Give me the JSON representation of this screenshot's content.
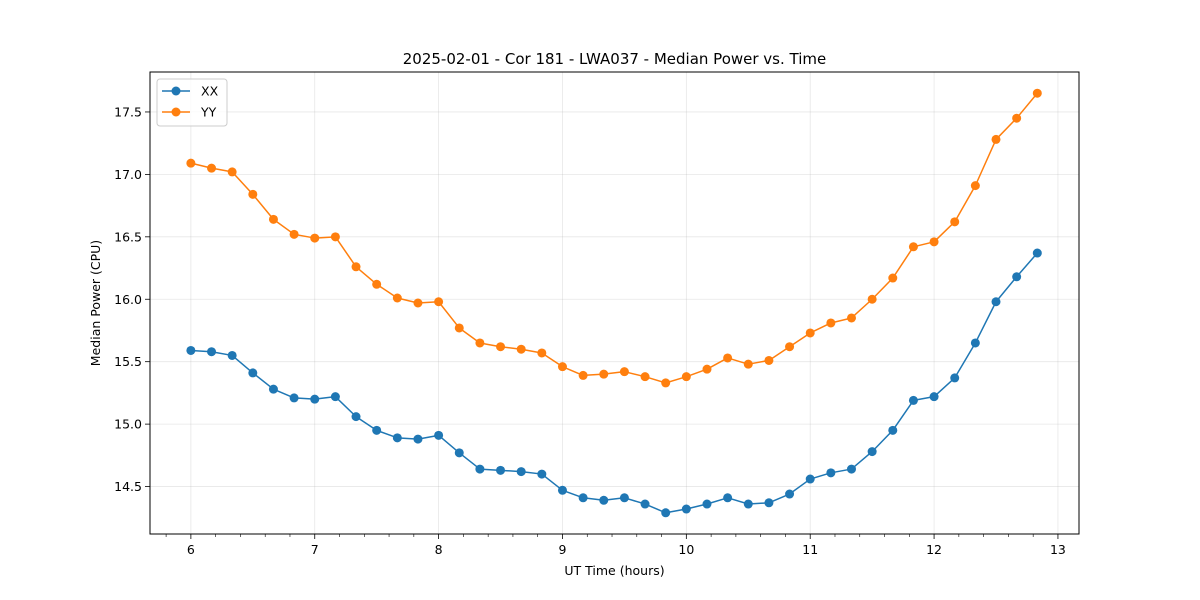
{
  "chart_data": {
    "type": "line",
    "title": "2025-02-01 - Cor 181 - LWA037 - Median Power vs. Time",
    "xlabel": "UT Time (hours)",
    "ylabel": "Median Power (CPU)",
    "xlim": [
      5.67,
      13.17
    ],
    "ylim": [
      14.12,
      17.82
    ],
    "xticks": [
      6,
      7,
      8,
      9,
      10,
      11,
      12,
      13
    ],
    "xtick_labels": [
      "6",
      "7",
      "8",
      "9",
      "10",
      "11",
      "12",
      "13"
    ],
    "yticks": [
      14.5,
      15.0,
      15.5,
      16.0,
      16.5,
      17.0,
      17.5
    ],
    "ytick_labels": [
      "14.5",
      "15.0",
      "15.5",
      "16.0",
      "16.5",
      "17.0",
      "17.5"
    ],
    "grid": true,
    "legend_position": "top-left",
    "x": [
      6.0,
      6.1667,
      6.3333,
      6.5,
      6.6667,
      6.8333,
      7.0,
      7.1667,
      7.3333,
      7.5,
      7.6667,
      7.8333,
      8.0,
      8.1667,
      8.3333,
      8.5,
      8.6667,
      8.8333,
      9.0,
      9.1667,
      9.3333,
      9.5,
      9.6667,
      9.8333,
      10.0,
      10.1667,
      10.3333,
      10.5,
      10.6667,
      10.8333,
      11.0,
      11.1667,
      11.3333,
      11.5,
      11.6667,
      11.8333,
      12.0,
      12.1667,
      12.3333,
      12.5,
      12.6667,
      12.8333
    ],
    "series": [
      {
        "name": "XX",
        "color": "#1f77b4",
        "values": [
          15.59,
          15.58,
          15.55,
          15.41,
          15.28,
          15.21,
          15.2,
          15.22,
          15.06,
          14.95,
          14.89,
          14.88,
          14.91,
          14.77,
          14.64,
          14.63,
          14.62,
          14.6,
          14.47,
          14.41,
          14.39,
          14.41,
          14.36,
          14.29,
          14.32,
          14.36,
          14.41,
          14.36,
          14.37,
          14.44,
          14.56,
          14.61,
          14.64,
          14.78,
          14.95,
          15.19,
          15.22,
          15.37,
          15.65,
          15.98,
          16.18,
          16.37
        ]
      },
      {
        "name": "YY",
        "color": "#ff7f0e",
        "values": [
          17.09,
          17.05,
          17.02,
          16.84,
          16.64,
          16.52,
          16.49,
          16.5,
          16.26,
          16.12,
          16.01,
          15.97,
          15.98,
          15.77,
          15.65,
          15.62,
          15.6,
          15.57,
          15.46,
          15.39,
          15.4,
          15.42,
          15.38,
          15.33,
          15.38,
          15.44,
          15.53,
          15.48,
          15.51,
          15.62,
          15.73,
          15.81,
          15.85,
          16.0,
          16.17,
          16.42,
          16.46,
          16.62,
          16.91,
          17.28,
          17.45,
          17.65
        ]
      }
    ]
  }
}
